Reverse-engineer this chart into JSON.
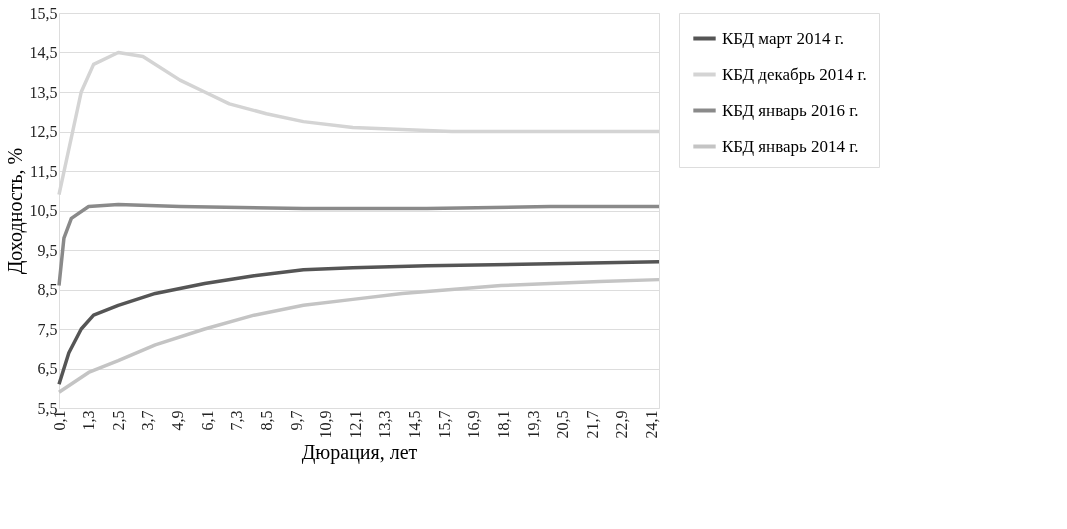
{
  "chart_data": {
    "type": "line",
    "xlabel": "Дюрация, лет",
    "ylabel": "Доходность, %",
    "xlim": [
      0.1,
      24.4
    ],
    "ylim": [
      5.5,
      15.5
    ],
    "xticks": [
      {
        "value": 0.1,
        "label": "0,1"
      },
      {
        "value": 1.3,
        "label": "1,3"
      },
      {
        "value": 2.5,
        "label": "2,5"
      },
      {
        "value": 3.7,
        "label": "3,7"
      },
      {
        "value": 4.9,
        "label": "4,9"
      },
      {
        "value": 6.1,
        "label": "6,1"
      },
      {
        "value": 7.3,
        "label": "7,3"
      },
      {
        "value": 8.5,
        "label": "8,5"
      },
      {
        "value": 9.7,
        "label": "9,7"
      },
      {
        "value": 10.9,
        "label": "10,9"
      },
      {
        "value": 12.1,
        "label": "12,1"
      },
      {
        "value": 13.3,
        "label": "13,3"
      },
      {
        "value": 14.5,
        "label": "14,5"
      },
      {
        "value": 15.7,
        "label": "15,7"
      },
      {
        "value": 16.9,
        "label": "16,9"
      },
      {
        "value": 18.1,
        "label": "18,1"
      },
      {
        "value": 19.3,
        "label": "19,3"
      },
      {
        "value": 20.5,
        "label": "20,5"
      },
      {
        "value": 21.7,
        "label": "21,7"
      },
      {
        "value": 22.9,
        "label": "22,9"
      },
      {
        "value": 24.1,
        "label": "24,1"
      }
    ],
    "yticks": [
      {
        "value": 5.5,
        "label": "5,5"
      },
      {
        "value": 6.5,
        "label": "6,5"
      },
      {
        "value": 7.5,
        "label": "7,5"
      },
      {
        "value": 8.5,
        "label": "8,5"
      },
      {
        "value": 9.5,
        "label": "9,5"
      },
      {
        "value": 10.5,
        "label": "10,5"
      },
      {
        "value": 11.5,
        "label": "11,5"
      },
      {
        "value": 12.5,
        "label": "12,5"
      },
      {
        "value": 13.5,
        "label": "13,5"
      },
      {
        "value": 14.5,
        "label": "14,5"
      },
      {
        "value": 15.5,
        "label": "15,5"
      }
    ],
    "grid": "y",
    "legend": "right",
    "marker": "none",
    "line_style": "solid",
    "series": [
      {
        "name": "КБД март 2014 г.",
        "color": "#555555",
        "x": [
          0.1,
          0.5,
          1,
          1.5,
          2.5,
          4,
          6,
          8,
          10,
          12,
          15,
          20,
          24.4
        ],
        "values": [
          6.1,
          6.9,
          7.5,
          7.85,
          8.1,
          8.4,
          8.65,
          8.85,
          9.0,
          9.05,
          9.1,
          9.15,
          9.2
        ]
      },
      {
        "name": "КБД декабрь 2014 г.",
        "color": "#d4d4d4",
        "x": [
          0.1,
          1,
          1.5,
          2.5,
          3.5,
          5,
          6,
          7,
          8.5,
          10,
          12,
          14,
          16,
          20,
          24.4
        ],
        "values": [
          10.9,
          13.5,
          14.2,
          14.5,
          14.4,
          13.8,
          13.5,
          13.2,
          12.95,
          12.75,
          12.6,
          12.55,
          12.5,
          12.5,
          12.5
        ]
      },
      {
        "name": "КБД январь 2016 г.",
        "color": "#8a8a8a",
        "x": [
          0.1,
          0.3,
          0.6,
          1.3,
          2.5,
          5,
          10,
          15,
          20,
          24.4
        ],
        "values": [
          8.6,
          9.8,
          10.3,
          10.6,
          10.65,
          10.6,
          10.55,
          10.55,
          10.6,
          10.6
        ]
      },
      {
        "name": "КБД январь 2014 г.",
        "color": "#c4c4c4",
        "x": [
          0.1,
          1.3,
          2.5,
          4,
          6,
          8,
          10,
          12,
          14,
          16,
          18,
          20,
          22,
          24.4
        ],
        "values": [
          5.9,
          6.4,
          6.7,
          7.1,
          7.5,
          7.85,
          8.1,
          8.25,
          8.4,
          8.5,
          8.6,
          8.65,
          8.7,
          8.75
        ]
      }
    ]
  }
}
